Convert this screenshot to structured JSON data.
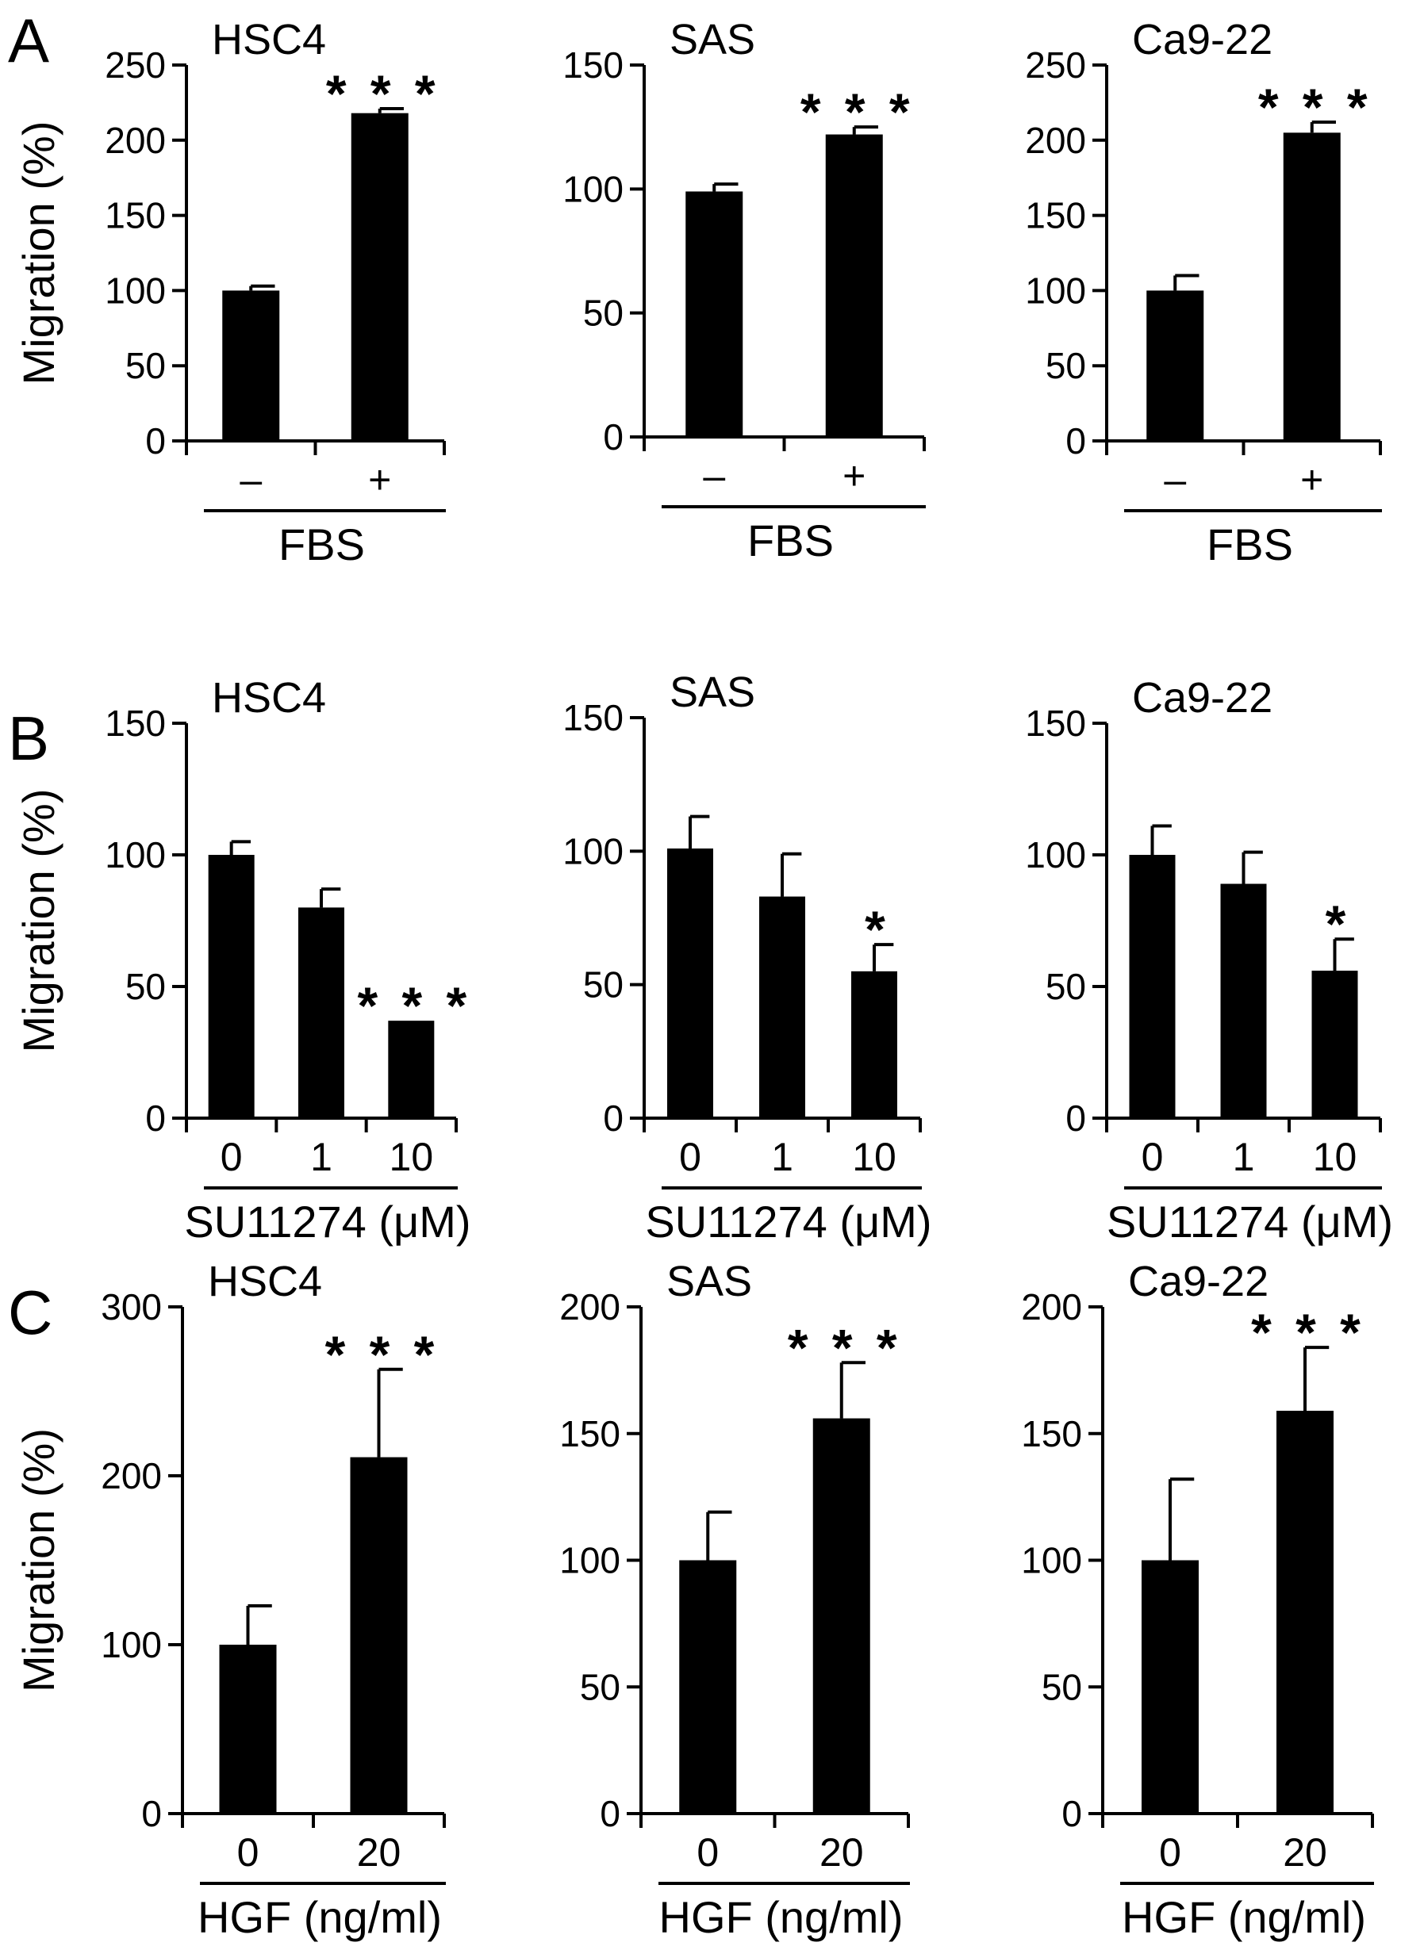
{
  "figure": {
    "panel_labels": [
      "A",
      "B",
      "C"
    ]
  },
  "chart_data": [
    {
      "type": "bar",
      "panel": "A",
      "title": "HSC4",
      "ylabel": "Migration (%)",
      "xlabel": "FBS",
      "categories": [
        "–",
        "+"
      ],
      "values": [
        100,
        218
      ],
      "errors": [
        3,
        3
      ],
      "significance": [
        "",
        "* * *"
      ],
      "ylim": [
        0,
        250
      ],
      "yticks": [
        0,
        50,
        100,
        150,
        200,
        250
      ],
      "bar_color": "#000000"
    },
    {
      "type": "bar",
      "panel": "A",
      "title": "SAS",
      "ylabel": "",
      "xlabel": "FBS",
      "categories": [
        "–",
        "+"
      ],
      "values": [
        99,
        122
      ],
      "errors": [
        3,
        3
      ],
      "significance": [
        "",
        "* * *"
      ],
      "ylim": [
        0,
        150
      ],
      "yticks": [
        0,
        50,
        100,
        150
      ],
      "bar_color": "#000000"
    },
    {
      "type": "bar",
      "panel": "A",
      "title": "Ca9-22",
      "ylabel": "",
      "xlabel": "FBS",
      "categories": [
        "–",
        "+"
      ],
      "values": [
        100,
        205
      ],
      "errors": [
        10,
        7
      ],
      "significance": [
        "",
        "* * *"
      ],
      "ylim": [
        0,
        250
      ],
      "yticks": [
        0,
        50,
        100,
        150,
        200,
        250
      ],
      "bar_color": "#000000"
    },
    {
      "type": "bar",
      "panel": "B",
      "title": "HSC4",
      "ylabel": "Migration (%)",
      "xlabel": "SU11274 (μM)",
      "categories": [
        "0",
        "1",
        "10"
      ],
      "values": [
        100,
        80,
        37
      ],
      "errors": [
        5,
        7,
        0
      ],
      "significance": [
        "",
        "",
        "* * *"
      ],
      "ylim": [
        0,
        150
      ],
      "yticks": [
        0,
        50,
        100,
        150
      ],
      "bar_color": "#000000"
    },
    {
      "type": "bar",
      "panel": "B",
      "title": "SAS",
      "ylabel": "",
      "xlabel": "SU11274 (μM)",
      "categories": [
        "0",
        "1",
        "10"
      ],
      "values": [
        101,
        83,
        55
      ],
      "errors": [
        12,
        16,
        10
      ],
      "significance": [
        "",
        "",
        "*"
      ],
      "ylim": [
        0,
        150
      ],
      "yticks": [
        0,
        50,
        100,
        150
      ],
      "bar_color": "#000000"
    },
    {
      "type": "bar",
      "panel": "B",
      "title": "Ca9-22",
      "ylabel": "",
      "xlabel": "SU11274 (μM)",
      "categories": [
        "0",
        "1",
        "10"
      ],
      "values": [
        100,
        89,
        56
      ],
      "errors": [
        11,
        12,
        12
      ],
      "significance": [
        "",
        "",
        "*"
      ],
      "ylim": [
        0,
        150
      ],
      "yticks": [
        0,
        50,
        100,
        150
      ],
      "bar_color": "#000000"
    },
    {
      "type": "bar",
      "panel": "C",
      "title": "HSC4",
      "ylabel": "Migration (%)",
      "xlabel": "HGF (ng/ml)",
      "categories": [
        "0",
        "20"
      ],
      "values": [
        100,
        211
      ],
      "errors": [
        23,
        52
      ],
      "significance": [
        "",
        "* * *"
      ],
      "ylim": [
        0,
        300
      ],
      "yticks": [
        0,
        100,
        200,
        300
      ],
      "bar_color": "#000000"
    },
    {
      "type": "bar",
      "panel": "C",
      "title": "SAS",
      "ylabel": "",
      "xlabel": "HGF (ng/ml)",
      "categories": [
        "0",
        "20"
      ],
      "values": [
        100,
        156
      ],
      "errors": [
        19,
        22
      ],
      "significance": [
        "",
        "* * *"
      ],
      "ylim": [
        0,
        200
      ],
      "yticks": [
        0,
        50,
        100,
        150,
        200
      ],
      "bar_color": "#000000"
    },
    {
      "type": "bar",
      "panel": "C",
      "title": "Ca9-22",
      "ylabel": "",
      "xlabel": "HGF (ng/ml)",
      "categories": [
        "0",
        "20"
      ],
      "values": [
        100,
        159
      ],
      "errors": [
        32,
        25
      ],
      "significance": [
        "",
        "* * *"
      ],
      "ylim": [
        0,
        200
      ],
      "yticks": [
        0,
        50,
        100,
        150,
        200
      ],
      "bar_color": "#000000"
    }
  ]
}
